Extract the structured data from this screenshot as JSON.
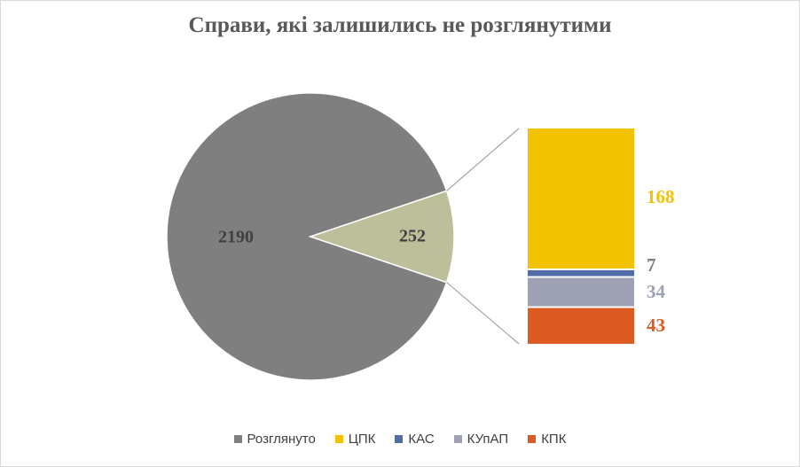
{
  "chart_data": {
    "type": "pie",
    "subtype": "bar-of-pie",
    "title": "Справи, які залишились не розглянутими",
    "pie": {
      "slices": [
        {
          "label": "Розглянуто",
          "value": 2190,
          "color": "#7f7f7f",
          "label_color": "#404040"
        },
        {
          "label": "252",
          "value": 252,
          "color": "#bdbf9b",
          "label_color": "#404040"
        }
      ]
    },
    "bar": {
      "segments": [
        {
          "label": "ЦПК",
          "value": 168,
          "color": "#f2c200",
          "label_color": "#f2c200"
        },
        {
          "label": "КАС",
          "value": 7,
          "color": "#4f6ea8",
          "label_color": "#7f7f7f"
        },
        {
          "label": "КУпАП",
          "value": 34,
          "color": "#9ea0b3",
          "label_color": "#9ea0b3"
        },
        {
          "label": "КПК",
          "value": 43,
          "color": "#dd5a22",
          "label_color": "#dd5a22"
        }
      ]
    },
    "legend": {
      "position": "bottom",
      "items": [
        {
          "label": "Розглянуто",
          "color": "#7f7f7f"
        },
        {
          "label": "ЦПК",
          "color": "#f2c200"
        },
        {
          "label": "КАС",
          "color": "#4f6ea8"
        },
        {
          "label": "КУпАП",
          "color": "#9ea0b3"
        },
        {
          "label": "КПК",
          "color": "#dd5a22"
        }
      ]
    }
  }
}
